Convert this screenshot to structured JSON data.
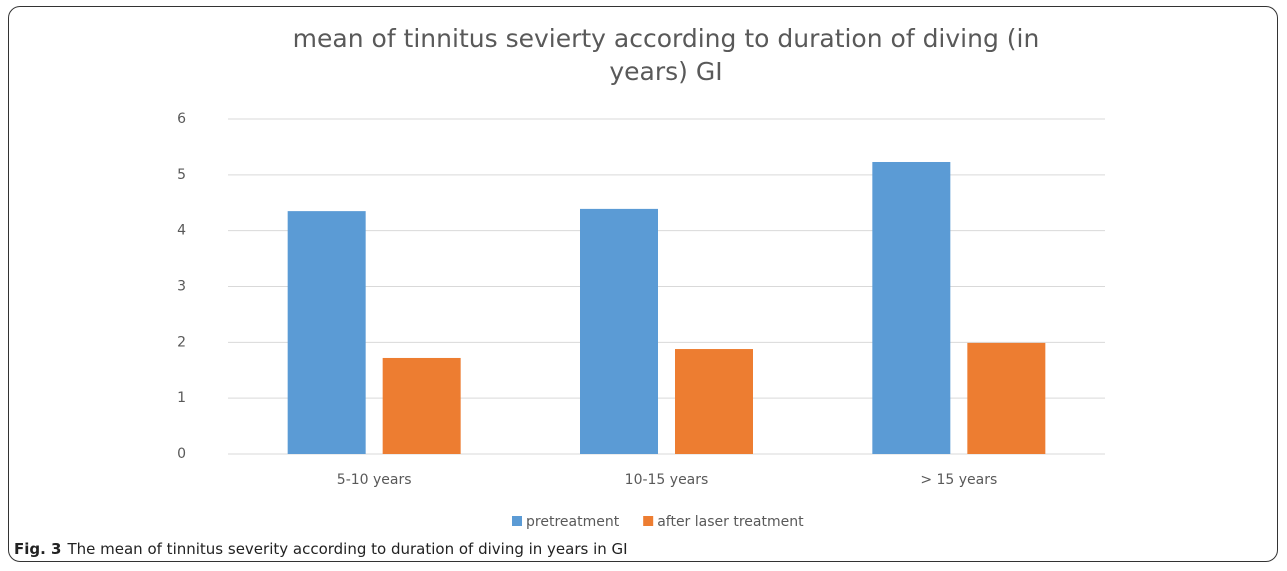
{
  "chart_data": {
    "type": "bar",
    "title": "mean of tinnitus sevierty according to duration of diving (in years) GI",
    "categories": [
      "5-10 years",
      "10-15 years",
      "> 15 years"
    ],
    "series": [
      {
        "name": "pretreatment",
        "color": "#5b9bd5",
        "values": [
          4.35,
          4.39,
          5.23
        ]
      },
      {
        "name": "after laser treatment",
        "color": "#ed7d31",
        "values": [
          1.72,
          1.88,
          1.99
        ]
      }
    ],
    "ylim": [
      0,
      6
    ],
    "yticks": [
      0,
      1,
      2,
      3,
      4,
      5,
      6
    ],
    "grid": true,
    "legend": "bottom"
  },
  "caption": {
    "label": "Fig. 3",
    "text": "The mean of tinnitus severity according to duration of diving in years in GI"
  }
}
